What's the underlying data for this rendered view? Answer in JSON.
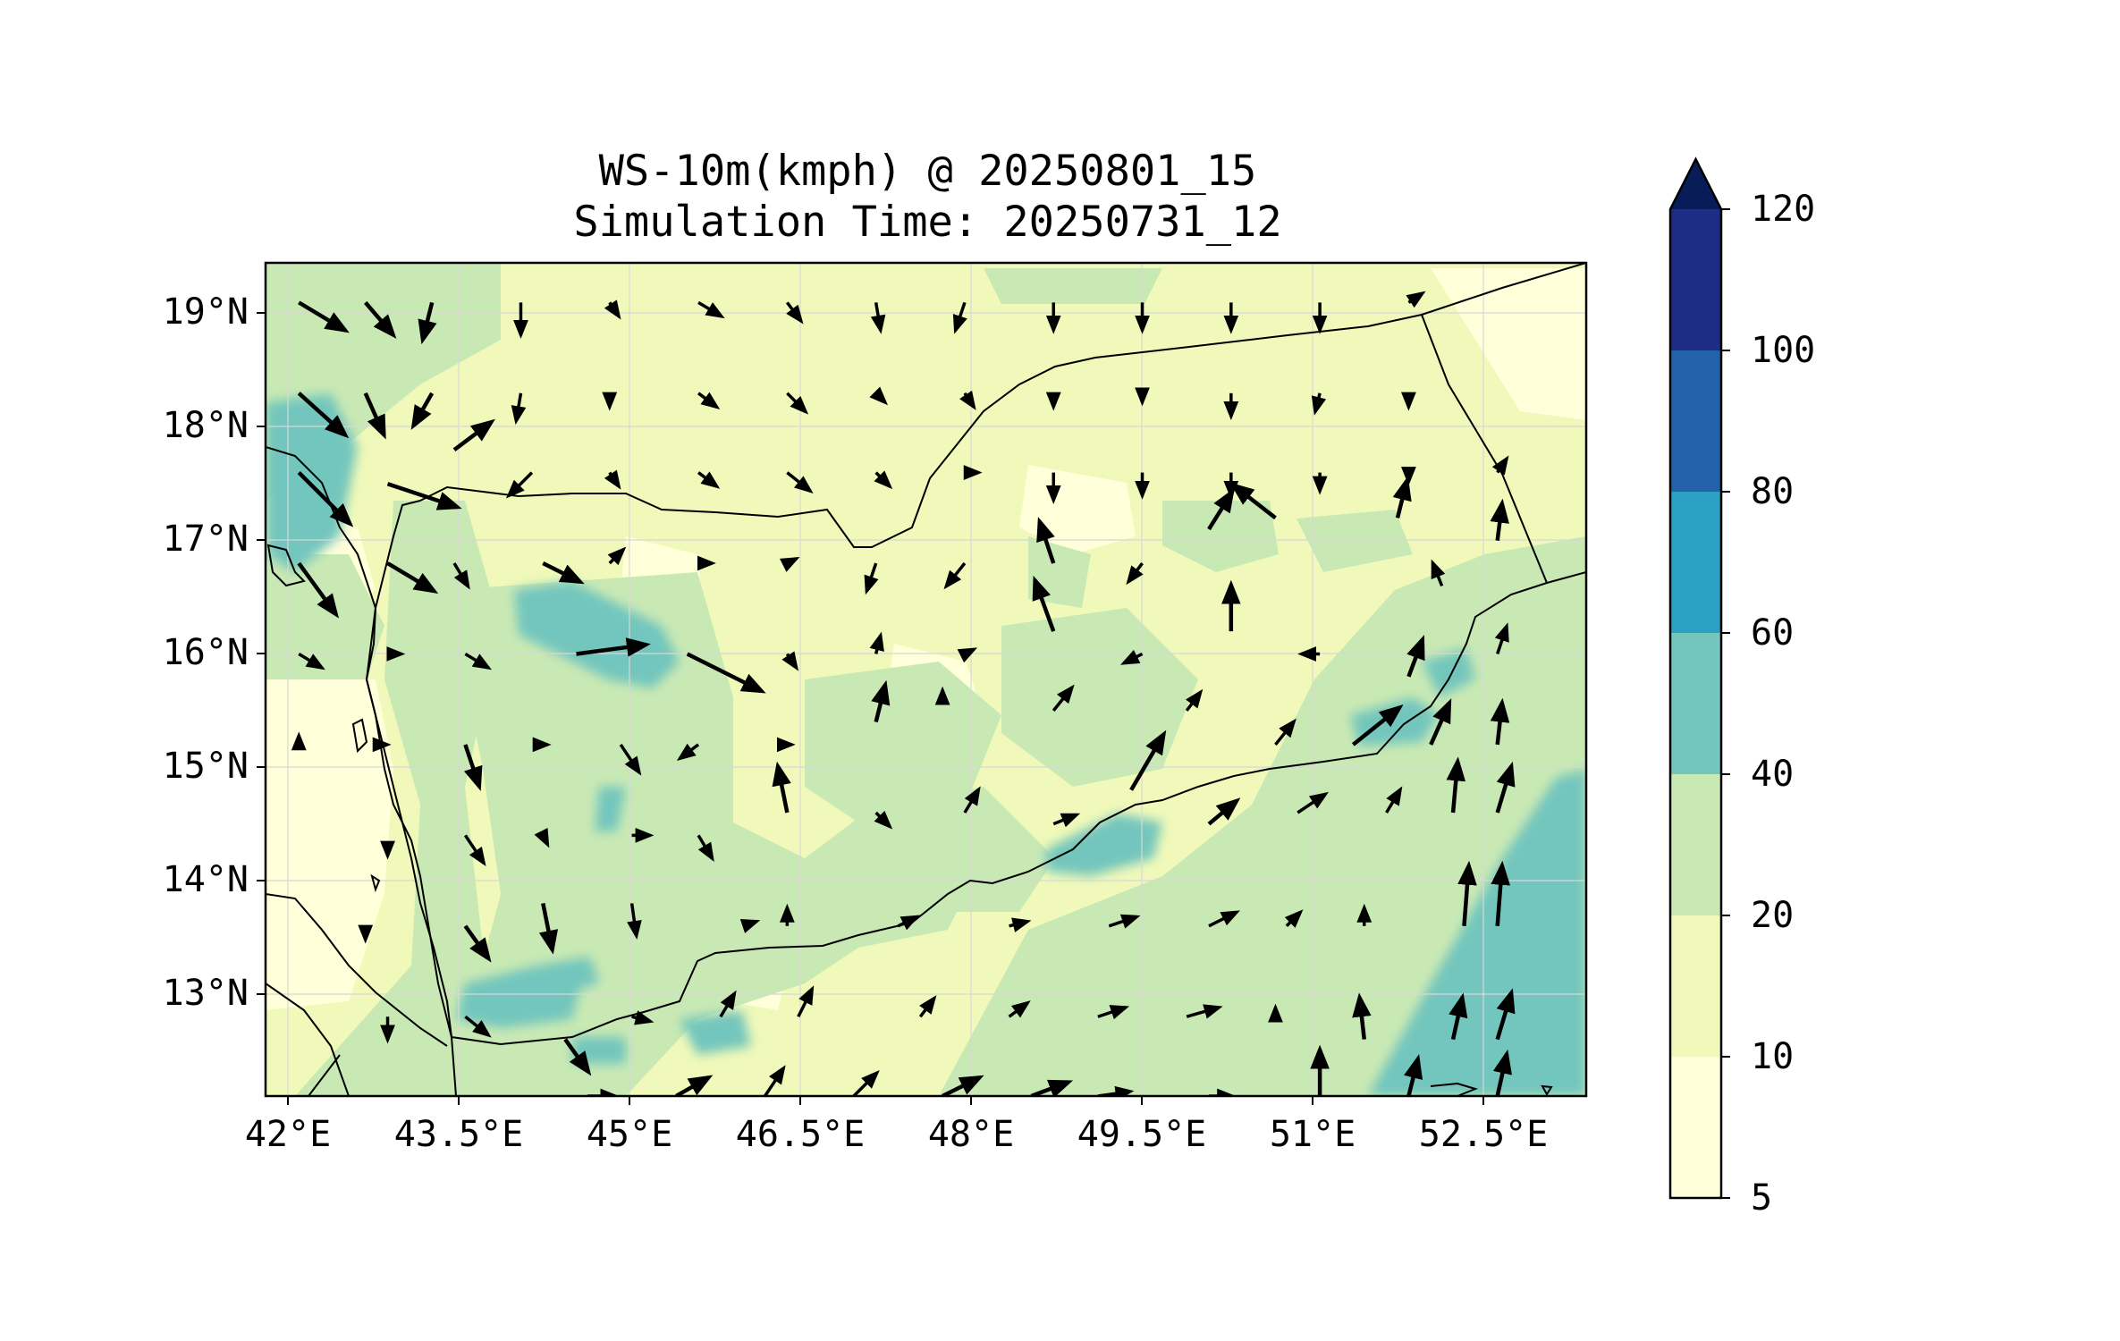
{
  "title": "WS-10m(kmph) @ 20250801_15",
  "subtitle": "Simulation Time: 20250731_12",
  "map": {
    "lon_range": [
      41.7,
      53.6
    ],
    "lat_range": [
      12.1,
      19.45
    ],
    "lat_ticks": [
      "19°N",
      "18°N",
      "17°N",
      "16°N",
      "15°N",
      "14°N",
      "13°N"
    ],
    "lon_ticks": [
      "42°E",
      "43.5°E",
      "45°E",
      "46.5°E",
      "48°E",
      "49.5°E",
      "51°E",
      "52.5°E"
    ],
    "gridlines": true
  },
  "colorbar": {
    "levels": [
      "5",
      "10",
      "20",
      "40",
      "60",
      "80",
      "100",
      "120"
    ],
    "colors": [
      "#ffffd9",
      "#f0f9b9",
      "#c9e9b4",
      "#73c6bd",
      "#2ca1c4",
      "#2162ab",
      "#1d2c84",
      "#081d58"
    ],
    "extend": "max"
  },
  "chart_data": {
    "type": "contour_vector_map",
    "variable": "10 m wind speed (kmph) with wind vectors",
    "field_levels": [
      5,
      10,
      20,
      40,
      60,
      80,
      100,
      120
    ],
    "wind_vectors_lonlat_uv": [
      [
        42.0,
        19.1,
        10,
        -6
      ],
      [
        42.6,
        19.1,
        6,
        -7
      ],
      [
        43.2,
        19.1,
        -2,
        -8
      ],
      [
        44.0,
        19.1,
        0,
        -7
      ],
      [
        44.8,
        19.1,
        2,
        -3
      ],
      [
        45.6,
        19.1,
        5,
        -3
      ],
      [
        46.4,
        19.1,
        3,
        -4
      ],
      [
        47.2,
        19.1,
        1,
        -6
      ],
      [
        48.0,
        19.1,
        -2,
        -6
      ],
      [
        48.8,
        19.1,
        0,
        -6
      ],
      [
        49.6,
        19.1,
        0,
        -6
      ],
      [
        50.4,
        19.1,
        0,
        -6
      ],
      [
        51.2,
        19.1,
        0,
        -6
      ],
      [
        52.0,
        19.1,
        3,
        2
      ],
      [
        42.0,
        18.3,
        10,
        -9
      ],
      [
        42.6,
        18.3,
        4,
        -9
      ],
      [
        43.2,
        18.3,
        -4,
        -7
      ],
      [
        44.0,
        18.3,
        -1,
        -6
      ],
      [
        44.8,
        18.3,
        0,
        -3
      ],
      [
        45.6,
        18.3,
        4,
        -3
      ],
      [
        46.4,
        18.3,
        4,
        -4
      ],
      [
        47.2,
        18.3,
        2,
        -2
      ],
      [
        48.0,
        18.3,
        2,
        -3
      ],
      [
        48.8,
        18.3,
        0,
        -3
      ],
      [
        49.6,
        18.3,
        0,
        -2
      ],
      [
        50.4,
        18.3,
        0,
        -5
      ],
      [
        51.2,
        18.3,
        -1,
        -4
      ],
      [
        52.0,
        18.3,
        0,
        -3
      ],
      [
        42.0,
        17.6,
        11,
        -11
      ],
      [
        42.8,
        17.5,
        15,
        -5
      ],
      [
        43.4,
        17.8,
        8,
        6
      ],
      [
        44.1,
        17.6,
        -5,
        -5
      ],
      [
        44.8,
        17.6,
        2,
        -3
      ],
      [
        45.6,
        17.6,
        4,
        -3
      ],
      [
        46.4,
        17.6,
        5,
        -4
      ],
      [
        47.2,
        17.6,
        3,
        -3
      ],
      [
        48.0,
        17.6,
        3,
        0
      ],
      [
        48.8,
        17.6,
        0,
        -6
      ],
      [
        49.6,
        17.6,
        0,
        -5
      ],
      [
        50.4,
        17.6,
        0,
        -5
      ],
      [
        51.2,
        17.6,
        0,
        -4
      ],
      [
        52.0,
        17.6,
        0,
        -2
      ],
      [
        52.8,
        17.6,
        2,
        3
      ],
      [
        42.0,
        16.8,
        8,
        -11
      ],
      [
        42.8,
        16.8,
        10,
        -6
      ],
      [
        43.4,
        16.8,
        3,
        -5
      ],
      [
        44.2,
        16.8,
        8,
        -4
      ],
      [
        44.8,
        16.8,
        3,
        3
      ],
      [
        45.6,
        16.8,
        3,
        0
      ],
      [
        46.4,
        16.8,
        2,
        1
      ],
      [
        47.2,
        16.8,
        -2,
        -6
      ],
      [
        48.0,
        16.8,
        -4,
        -5
      ],
      [
        48.8,
        16.8,
        -3,
        9
      ],
      [
        49.6,
        16.8,
        -3,
        -4
      ],
      [
        50.2,
        17.1,
        5,
        8
      ],
      [
        50.8,
        17.2,
        -9,
        7
      ],
      [
        51.9,
        17.2,
        2,
        8
      ],
      [
        52.3,
        16.6,
        -2,
        5
      ],
      [
        52.8,
        17.0,
        1,
        8
      ],
      [
        42.0,
        16.0,
        5,
        -3
      ],
      [
        42.8,
        16.0,
        3,
        0
      ],
      [
        43.5,
        16.0,
        5,
        -3
      ],
      [
        44.5,
        16.0,
        15,
        2
      ],
      [
        45.5,
        16.0,
        16,
        -8
      ],
      [
        46.4,
        16.0,
        2,
        -3
      ],
      [
        47.2,
        16.0,
        1,
        4
      ],
      [
        48.0,
        16.0,
        2,
        1
      ],
      [
        48.8,
        16.2,
        -4,
        11
      ],
      [
        49.6,
        16.0,
        -4,
        -2
      ],
      [
        50.4,
        16.2,
        0,
        10
      ],
      [
        51.2,
        16.0,
        -4,
        0
      ],
      [
        52.0,
        15.8,
        3,
        8
      ],
      [
        52.8,
        16.0,
        2,
        6
      ],
      [
        42.0,
        15.2,
        0,
        2
      ],
      [
        42.8,
        15.2,
        0,
        0
      ],
      [
        43.5,
        15.2,
        3,
        -9
      ],
      [
        44.2,
        15.2,
        1,
        0
      ],
      [
        44.9,
        15.2,
        4,
        -6
      ],
      [
        45.6,
        15.2,
        -4,
        -3
      ],
      [
        46.4,
        15.2,
        1,
        0
      ],
      [
        47.2,
        15.4,
        2,
        8
      ],
      [
        47.8,
        15.6,
        0,
        2
      ],
      [
        48.8,
        15.5,
        4,
        5
      ],
      [
        49.5,
        14.8,
        7,
        12
      ],
      [
        50.0,
        15.5,
        3,
        4
      ],
      [
        50.8,
        15.2,
        4,
        5
      ],
      [
        51.5,
        15.2,
        10,
        8
      ],
      [
        52.2,
        15.2,
        4,
        9
      ],
      [
        52.8,
        15.2,
        1,
        9
      ],
      [
        42.8,
        14.3,
        0,
        -2
      ],
      [
        43.5,
        14.4,
        4,
        -6
      ],
      [
        44.2,
        14.4,
        1,
        -2
      ],
      [
        45.0,
        14.4,
        4,
        0
      ],
      [
        45.6,
        14.4,
        3,
        -5
      ],
      [
        46.4,
        14.6,
        -2,
        10
      ],
      [
        47.2,
        14.6,
        3,
        -3
      ],
      [
        48.0,
        14.6,
        3,
        5
      ],
      [
        48.8,
        14.5,
        5,
        2
      ],
      [
        50.2,
        14.5,
        6,
        5
      ],
      [
        51.0,
        14.6,
        6,
        4
      ],
      [
        51.8,
        14.6,
        3,
        5
      ],
      [
        52.4,
        14.6,
        1,
        11
      ],
      [
        52.8,
        14.6,
        3,
        10
      ],
      [
        42.6,
        13.6,
        0,
        -3
      ],
      [
        43.5,
        13.6,
        5,
        -7
      ],
      [
        44.2,
        13.8,
        2,
        -10
      ],
      [
        45.0,
        13.8,
        1,
        -7
      ],
      [
        46.0,
        13.6,
        3,
        1
      ],
      [
        46.4,
        13.6,
        0,
        4
      ],
      [
        47.4,
        13.6,
        4,
        2
      ],
      [
        48.4,
        13.6,
        4,
        1
      ],
      [
        49.3,
        13.6,
        6,
        2
      ],
      [
        50.2,
        13.6,
        6,
        3
      ],
      [
        50.9,
        13.6,
        3,
        3
      ],
      [
        51.6,
        13.6,
        0,
        4
      ],
      [
        52.5,
        13.6,
        1,
        13
      ],
      [
        52.8,
        13.6,
        1,
        13
      ],
      [
        42.8,
        12.8,
        0,
        -5
      ],
      [
        43.5,
        12.8,
        5,
        -4
      ],
      [
        44.4,
        12.6,
        5,
        -7
      ],
      [
        45.0,
        12.8,
        4,
        -1
      ],
      [
        45.8,
        12.8,
        3,
        5
      ],
      [
        46.5,
        12.8,
        3,
        6
      ],
      [
        47.6,
        12.8,
        3,
        4
      ],
      [
        48.4,
        12.8,
        4,
        3
      ],
      [
        49.2,
        12.8,
        6,
        2
      ],
      [
        50.0,
        12.8,
        7,
        2
      ],
      [
        50.8,
        12.8,
        0,
        2
      ],
      [
        51.6,
        12.6,
        -1,
        9
      ],
      [
        52.4,
        12.6,
        2,
        9
      ],
      [
        52.8,
        12.6,
        3,
        10
      ],
      [
        44.6,
        12.1,
        6,
        0
      ],
      [
        45.4,
        12.1,
        7,
        4
      ],
      [
        46.2,
        12.1,
        4,
        6
      ],
      [
        47.0,
        12.1,
        5,
        5
      ],
      [
        47.8,
        12.1,
        8,
        4
      ],
      [
        48.6,
        12.1,
        8,
        3
      ],
      [
        49.2,
        12.1,
        7,
        1
      ],
      [
        50.2,
        12.1,
        5,
        0
      ],
      [
        51.2,
        12.1,
        0,
        10
      ],
      [
        52.0,
        12.1,
        2,
        8
      ],
      [
        52.8,
        12.1,
        2,
        9
      ]
    ]
  }
}
